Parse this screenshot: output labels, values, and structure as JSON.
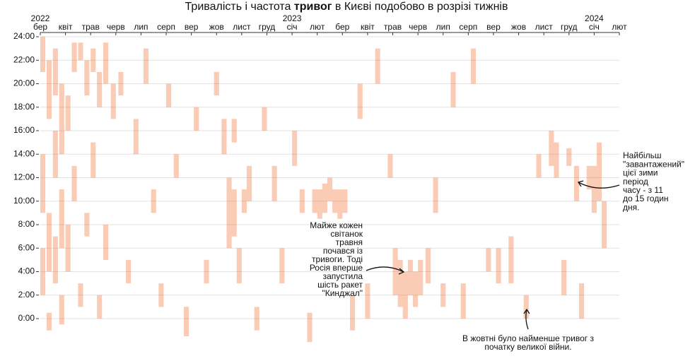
{
  "chart_data": {
    "type": "timeline",
    "title": [
      "Тривалість і частота ",
      "тривог",
      " в Києві подобово в розрізі тижнів"
    ],
    "color": "#f26b2a",
    "xlim": [
      0,
      23
    ],
    "xticks": [
      {
        "value": 0,
        "label": "бер"
      },
      {
        "value": 1,
        "label": "квіт"
      },
      {
        "value": 2,
        "label": "трав"
      },
      {
        "value": 3,
        "label": "черв"
      },
      {
        "value": 4,
        "label": "лип"
      },
      {
        "value": 5,
        "label": "серп"
      },
      {
        "value": 6,
        "label": "вер"
      },
      {
        "value": 7,
        "label": "жов"
      },
      {
        "value": 8,
        "label": "лист"
      },
      {
        "value": 9,
        "label": "груд"
      },
      {
        "value": 10,
        "label": "січ"
      },
      {
        "value": 11,
        "label": "лют"
      },
      {
        "value": 12,
        "label": "бер"
      },
      {
        "value": 13,
        "label": "квіт"
      },
      {
        "value": 14,
        "label": "трав"
      },
      {
        "value": 15,
        "label": "черв"
      },
      {
        "value": 16,
        "label": "лип"
      },
      {
        "value": 17,
        "label": "серп"
      },
      {
        "value": 18,
        "label": "вер"
      },
      {
        "value": 19,
        "label": "жов"
      },
      {
        "value": 20,
        "label": "лист"
      },
      {
        "value": 21,
        "label": "груд"
      },
      {
        "value": 22,
        "label": "січ"
      },
      {
        "value": 23,
        "label": "лют"
      }
    ],
    "year_labels": [
      {
        "value": 0,
        "label": "2022"
      },
      {
        "value": 10,
        "label": "2023"
      },
      {
        "value": 22,
        "label": "2024"
      }
    ],
    "ylim": [
      -3,
      24
    ],
    "yticks": [
      {
        "value": 24,
        "label": "24:00"
      },
      {
        "value": 22,
        "label": "22:00"
      },
      {
        "value": 20,
        "label": "20:00"
      },
      {
        "value": 18,
        "label": "18:00"
      },
      {
        "value": 16,
        "label": "16:00"
      },
      {
        "value": 14,
        "label": "14:00"
      },
      {
        "value": 12,
        "label": "12:00"
      },
      {
        "value": 10,
        "label": "10:00"
      },
      {
        "value": 8,
        "label": "8:00"
      },
      {
        "value": 6,
        "label": "6:00"
      },
      {
        "value": 4,
        "label": "4:00"
      },
      {
        "value": 2,
        "label": "2:00"
      },
      {
        "value": 0,
        "label": "0:00"
      }
    ],
    "grid": true,
    "x": [
      0.1,
      0.1,
      0.1,
      0.35,
      0.35,
      0.35,
      0.6,
      0.6,
      0.6,
      0.85,
      0.85,
      0.85,
      1.1,
      1.1,
      1.35,
      1.35,
      1.6,
      1.6,
      1.85,
      1.85,
      2.1,
      2.1,
      2.35,
      2.35,
      2.6,
      2.6,
      2.9,
      3.2,
      3.5,
      3.8,
      4.2,
      4.5,
      4.8,
      5.1,
      5.4,
      5.8,
      6.2,
      6.6,
      7.0,
      7.3,
      7.5,
      7.7,
      7.7,
      7.9,
      8.1,
      8.3,
      8.6,
      8.9,
      9.3,
      9.6,
      10.1,
      10.4,
      10.7,
      10.9,
      11.1,
      11.3,
      11.5,
      11.7,
      11.9,
      12.1,
      12.4,
      12.7,
      13.0,
      13.4,
      13.9,
      14.1,
      14.3,
      14.5,
      14.7,
      14.9,
      15.1,
      15.4,
      15.7,
      16.0,
      16.4,
      16.8,
      17.2,
      17.8,
      18.2,
      18.7,
      19.3,
      19.8,
      20.3,
      20.5,
      20.8,
      21.0,
      21.3,
      21.5,
      21.8,
      22.0,
      22.2,
      22.4
    ],
    "start": [
      21,
      9,
      2,
      17,
      4,
      -1,
      19,
      12,
      3,
      14,
      6,
      -0.5,
      16,
      4,
      21,
      10,
      22,
      1,
      19,
      7,
      21,
      12,
      18,
      0,
      20,
      5,
      17,
      19,
      3,
      14,
      20,
      9,
      1,
      18,
      12,
      -1.5,
      16,
      3,
      19,
      14,
      6,
      15,
      7,
      3,
      9,
      10,
      -1,
      16,
      10,
      3,
      13,
      9,
      -2,
      9,
      8.5,
      9,
      10,
      9,
      8.5,
      9,
      -1,
      17,
      0,
      20,
      12,
      2,
      1,
      0,
      2,
      1,
      2,
      3,
      9,
      1,
      18,
      0,
      20,
      4,
      3,
      3,
      0,
      12,
      13,
      12,
      2,
      13,
      10,
      0,
      11,
      9,
      10,
      6
    ],
    "end": [
      24,
      14,
      6,
      22,
      9,
      0.5,
      23,
      16,
      7,
      20,
      11,
      2,
      19,
      8,
      23.5,
      13,
      23.5,
      3,
      22,
      9,
      23,
      15,
      21,
      2,
      23.5,
      8,
      20,
      21,
      5,
      17,
      23,
      11,
      3,
      20,
      14,
      1,
      18,
      5,
      21,
      17,
      12,
      17,
      11,
      6,
      11,
      13,
      1,
      18,
      13,
      6,
      16,
      11,
      0.5,
      11,
      11,
      11.5,
      12,
      11,
      11,
      11,
      2,
      20,
      3,
      23,
      14,
      6,
      5,
      4,
      5,
      4,
      5,
      6,
      12,
      3,
      21,
      3,
      23,
      6,
      6,
      7,
      2,
      14,
      16,
      15,
      5,
      14.5,
      13,
      3,
      13,
      13,
      15,
      10
    ],
    "annotations": [
      {
        "lines": [
          "Майже кожен",
          "світанок",
          "травня",
          "почався із",
          "тривоги. Тоді",
          "Росія вперше",
          "запустила",
          "шість ракет",
          "\"Кинджал\""
        ]
      },
      {
        "lines": [
          "В жовтні було найменше тривог з",
          "початку великої війни."
        ]
      },
      {
        "lines": [
          "Найбільш",
          "\"завантажений\"",
          "цієї зими",
          "період",
          "часу - з 11",
          "до 15 годин",
          "дня."
        ]
      }
    ]
  }
}
